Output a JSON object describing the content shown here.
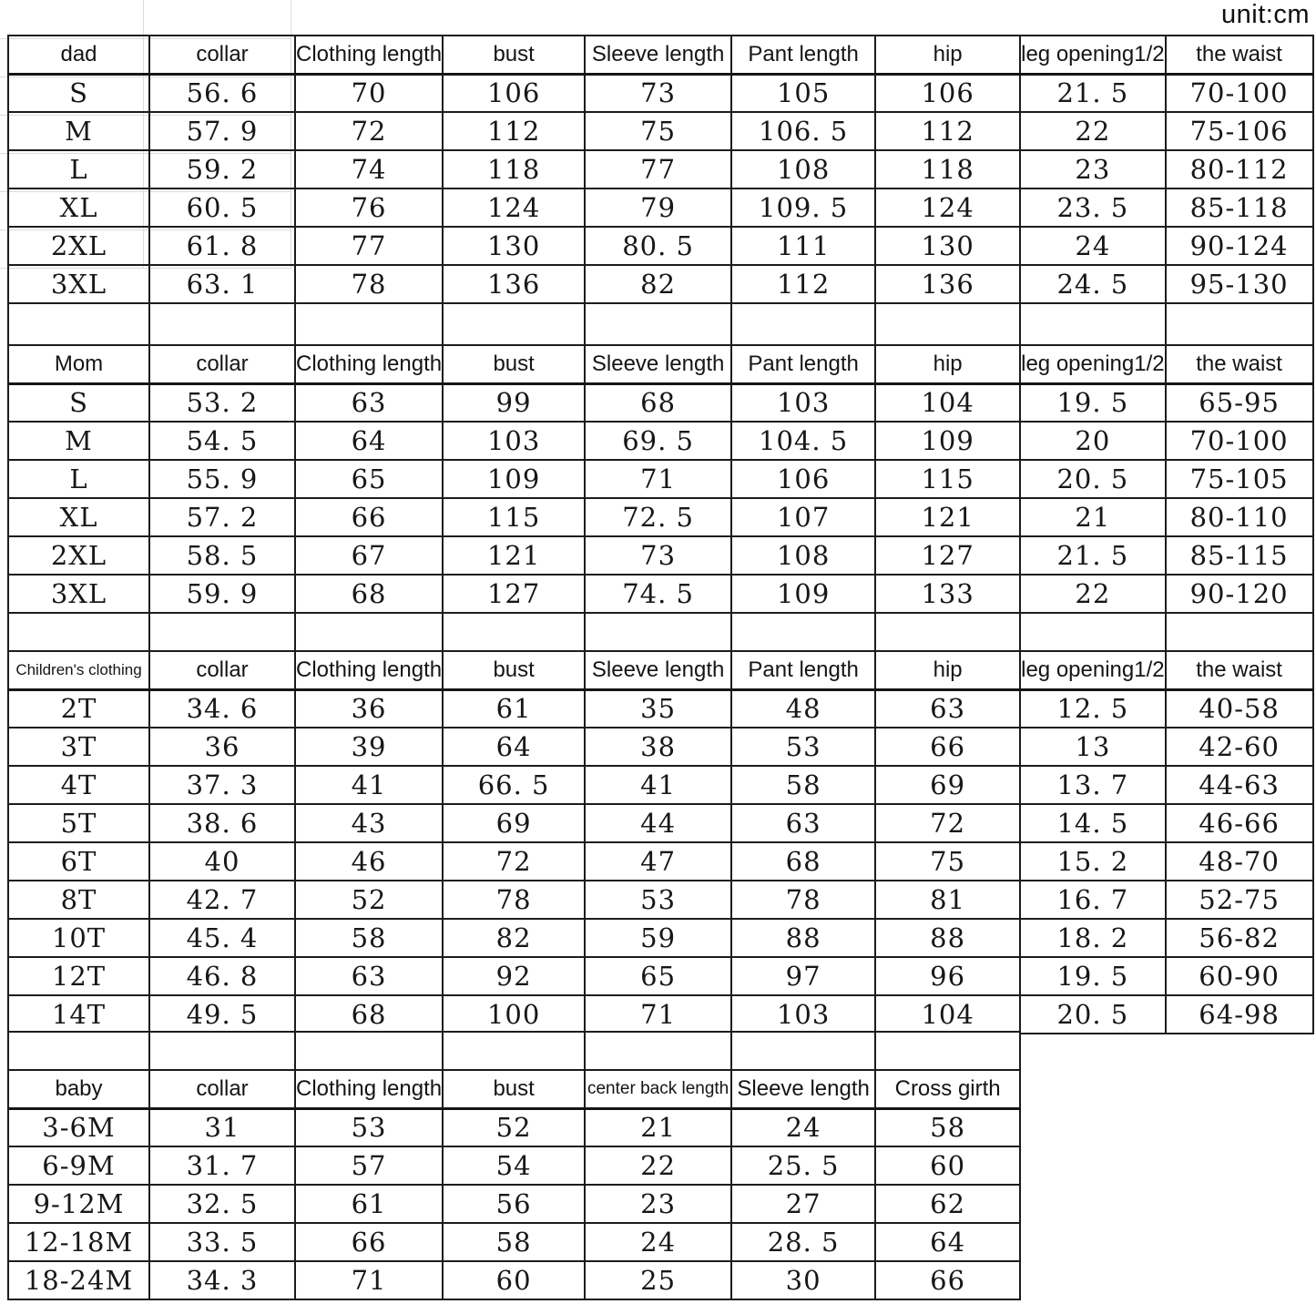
{
  "unit_label": "unit:cm",
  "tables": [
    {
      "id": "dad",
      "headers": [
        "dad",
        "collar",
        "Clothing length",
        "bust",
        "Sleeve length",
        "Pant length",
        "hip",
        "leg opening1/2",
        "the waist"
      ],
      "rows": [
        [
          "S",
          "56. 6",
          "70",
          "106",
          "73",
          "105",
          "106",
          "21. 5",
          "70-100"
        ],
        [
          "M",
          "57. 9",
          "72",
          "112",
          "75",
          "106. 5",
          "112",
          "22",
          "75-106"
        ],
        [
          "L",
          "59. 2",
          "74",
          "118",
          "77",
          "108",
          "118",
          "23",
          "80-112"
        ],
        [
          "XL",
          "60. 5",
          "76",
          "124",
          "79",
          "109. 5",
          "124",
          "23. 5",
          "85-118"
        ],
        [
          "2XL",
          "61. 8",
          "77",
          "130",
          "80. 5",
          "111",
          "130",
          "24",
          "90-124"
        ],
        [
          "3XL",
          "63. 1",
          "78",
          "136",
          "82",
          "112",
          "136",
          "24. 5",
          "95-130"
        ]
      ]
    },
    {
      "id": "mom",
      "headers": [
        "Mom",
        "collar",
        "Clothing length",
        "bust",
        "Sleeve length",
        "Pant length",
        "hip",
        "leg opening1/2",
        "the waist"
      ],
      "rows": [
        [
          "S",
          "53. 2",
          "63",
          "99",
          "68",
          "103",
          "104",
          "19. 5",
          "65-95"
        ],
        [
          "M",
          "54. 5",
          "64",
          "103",
          "69. 5",
          "104. 5",
          "109",
          "20",
          "70-100"
        ],
        [
          "L",
          "55. 9",
          "65",
          "109",
          "71",
          "106",
          "115",
          "20. 5",
          "75-105"
        ],
        [
          "XL",
          "57. 2",
          "66",
          "115",
          "72. 5",
          "107",
          "121",
          "21",
          "80-110"
        ],
        [
          "2XL",
          "58. 5",
          "67",
          "121",
          "73",
          "108",
          "127",
          "21. 5",
          "85-115"
        ],
        [
          "3XL",
          "59. 9",
          "68",
          "127",
          "74. 5",
          "109",
          "133",
          "22",
          "90-120"
        ]
      ]
    },
    {
      "id": "children",
      "headers": [
        "Children's clothing",
        "collar",
        "Clothing length",
        "bust",
        "Sleeve length",
        "Pant length",
        "hip",
        "leg opening1/2",
        "the waist"
      ],
      "rows": [
        [
          "2T",
          "34. 6",
          "36",
          "61",
          "35",
          "48",
          "63",
          "12. 5",
          "40-58"
        ],
        [
          "3T",
          "36",
          "39",
          "64",
          "38",
          "53",
          "66",
          "13",
          "42-60"
        ],
        [
          "4T",
          "37. 3",
          "41",
          "66. 5",
          "41",
          "58",
          "69",
          "13. 7",
          "44-63"
        ],
        [
          "5T",
          "38. 6",
          "43",
          "69",
          "44",
          "63",
          "72",
          "14. 5",
          "46-66"
        ],
        [
          "6T",
          "40",
          "46",
          "72",
          "47",
          "68",
          "75",
          "15. 2",
          "48-70"
        ],
        [
          "8T",
          "42. 7",
          "52",
          "78",
          "53",
          "78",
          "81",
          "16. 7",
          "52-75"
        ],
        [
          "10T",
          "45. 4",
          "58",
          "82",
          "59",
          "88",
          "88",
          "18. 2",
          "56-82"
        ],
        [
          "12T",
          "46. 8",
          "63",
          "92",
          "65",
          "97",
          "96",
          "19. 5",
          "60-90"
        ],
        [
          "14T",
          "49. 5",
          "68",
          "100",
          "71",
          "103",
          "104",
          "20. 5",
          "64-98"
        ]
      ]
    },
    {
      "id": "baby",
      "headers": [
        "baby",
        "collar",
        "Clothing length",
        "bust",
        "center back length",
        "Sleeve length",
        "Cross girth"
      ],
      "rows": [
        [
          "3-6M",
          "31",
          "53",
          "52",
          "21",
          "24",
          "58"
        ],
        [
          "6-9M",
          "31. 7",
          "57",
          "54",
          "22",
          "25. 5",
          "60"
        ],
        [
          "9-12M",
          "32. 5",
          "61",
          "56",
          "23",
          "27",
          "62"
        ],
        [
          "12-18M",
          "33. 5",
          "66",
          "58",
          "24",
          "28. 5",
          "64"
        ],
        [
          "18-24M",
          "34. 3",
          "71",
          "60",
          "25",
          "30",
          "66"
        ]
      ]
    }
  ]
}
